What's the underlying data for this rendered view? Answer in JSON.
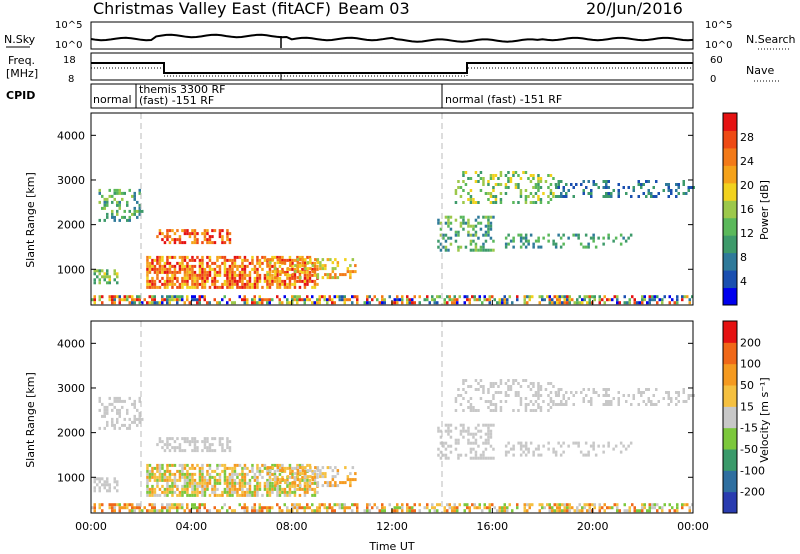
{
  "header": {
    "title_left": "Christmas Valley East (fitACF)",
    "beam": "Beam 03",
    "date": "20/Jun/2016"
  },
  "panels": {
    "sky": {
      "label": "N.Sky",
      "right_label": "N.Search",
      "ticks_left": [
        "10^5",
        "10^0"
      ],
      "ticks_right": [
        "10^5",
        "10^0"
      ]
    },
    "freq": {
      "label_lines": [
        "Freq.",
        "[MHz]"
      ],
      "right_label": "Nave",
      "ticks_left": [
        "18",
        "8"
      ],
      "ticks_right": [
        "60",
        "0"
      ]
    },
    "cpid": {
      "label": "CPID",
      "segments": [
        "normal",
        "themis 3300 RF",
        "(fast) -151 RF",
        "normal (fast) -151 RF"
      ]
    }
  },
  "chart_data": [
    {
      "type": "heatmap",
      "name": "power",
      "ylabel": "Slant Range [km]",
      "yticks": [
        "4000",
        "3000",
        "2000",
        "1000"
      ],
      "ylim": [
        200,
        4500
      ],
      "xlim": [
        0,
        24
      ],
      "colorbar": {
        "label": "Power [dB]",
        "ticks": [
          "28",
          "24",
          "20",
          "16",
          "12",
          "8",
          "4"
        ],
        "colors": [
          "#0000ee",
          "#1a4fb0",
          "#2f7a9a",
          "#3d9a6a",
          "#5ab85a",
          "#9cc84a",
          "#f2d21e",
          "#f5a21a",
          "#f37a18",
          "#ee4a14",
          "#e51212"
        ]
      }
    },
    {
      "type": "heatmap",
      "name": "velocity",
      "ylabel": "Slant Range [km]",
      "yticks": [
        "4000",
        "3000",
        "2000",
        "1000"
      ],
      "ylim": [
        200,
        4500
      ],
      "xlim": [
        0,
        24
      ],
      "xlabel": "Time UT",
      "xticks": [
        "00:00",
        "04:00",
        "08:00",
        "12:00",
        "16:00",
        "20:00",
        "00:00"
      ],
      "colorbar": {
        "label": "Velocity [m s⁻¹]",
        "ticks": [
          "200",
          "100",
          "50",
          "15",
          "-15",
          "-50",
          "-100",
          "-200"
        ],
        "colors": [
          "#2a3cb0",
          "#2f6fa0",
          "#3a9a6a",
          "#7cc83c",
          "#c8c8c8",
          "#f5c040",
          "#f59a20",
          "#f06818",
          "#e51212"
        ]
      }
    }
  ]
}
